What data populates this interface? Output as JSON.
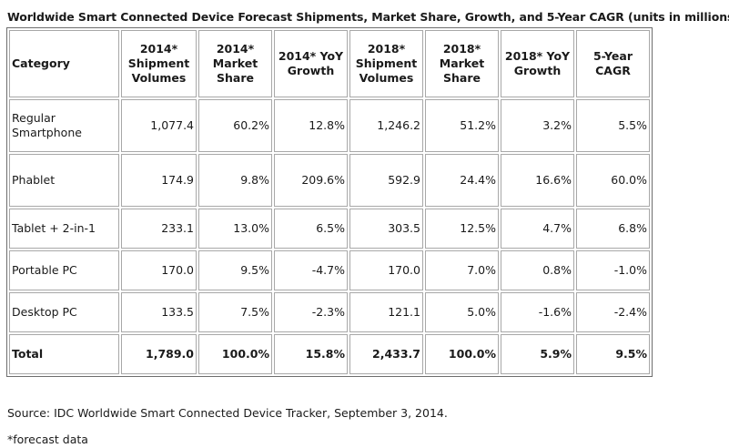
{
  "chart_data": {
    "type": "table",
    "title": "Worldwide Smart Connected Device Forecast Shipments, Market Share, Growth, and 5-Year CAGR (units in millions)",
    "columns": [
      "Category",
      "2014* Shipment Volumes",
      "2014* Market Share",
      "2014* YoY Growth",
      "2018* Shipment Volumes",
      "2018* Market Share",
      "2018* YoY Growth",
      "5-Year CAGR"
    ],
    "rows": [
      [
        "Regular Smartphone",
        "1,077.4",
        "60.2%",
        "12.8%",
        "1,246.2",
        "51.2%",
        "3.2%",
        "5.5%"
      ],
      [
        "Phablet",
        "174.9",
        "9.8%",
        "209.6%",
        "592.9",
        "24.4%",
        "16.6%",
        "60.0%"
      ],
      [
        "Tablet + 2-in-1",
        "233.1",
        "13.0%",
        "6.5%",
        "303.5",
        "12.5%",
        "4.7%",
        "6.8%"
      ],
      [
        "Portable PC",
        "170.0",
        "9.5%",
        "-4.7%",
        "170.0",
        "7.0%",
        "0.8%",
        "-1.0%"
      ],
      [
        "Desktop PC",
        "133.5",
        "7.5%",
        "-2.3%",
        "121.1",
        "5.0%",
        "-1.6%",
        "-2.4%"
      ]
    ],
    "total": [
      "Total",
      "1,789.0",
      "100.0%",
      "15.8%",
      "2,433.7",
      "100.0%",
      "5.9%",
      "9.5%"
    ],
    "source": "Source:  IDC Worldwide Smart Connected Device Tracker, September 3, 2014.",
    "footnote": "*forecast data"
  }
}
